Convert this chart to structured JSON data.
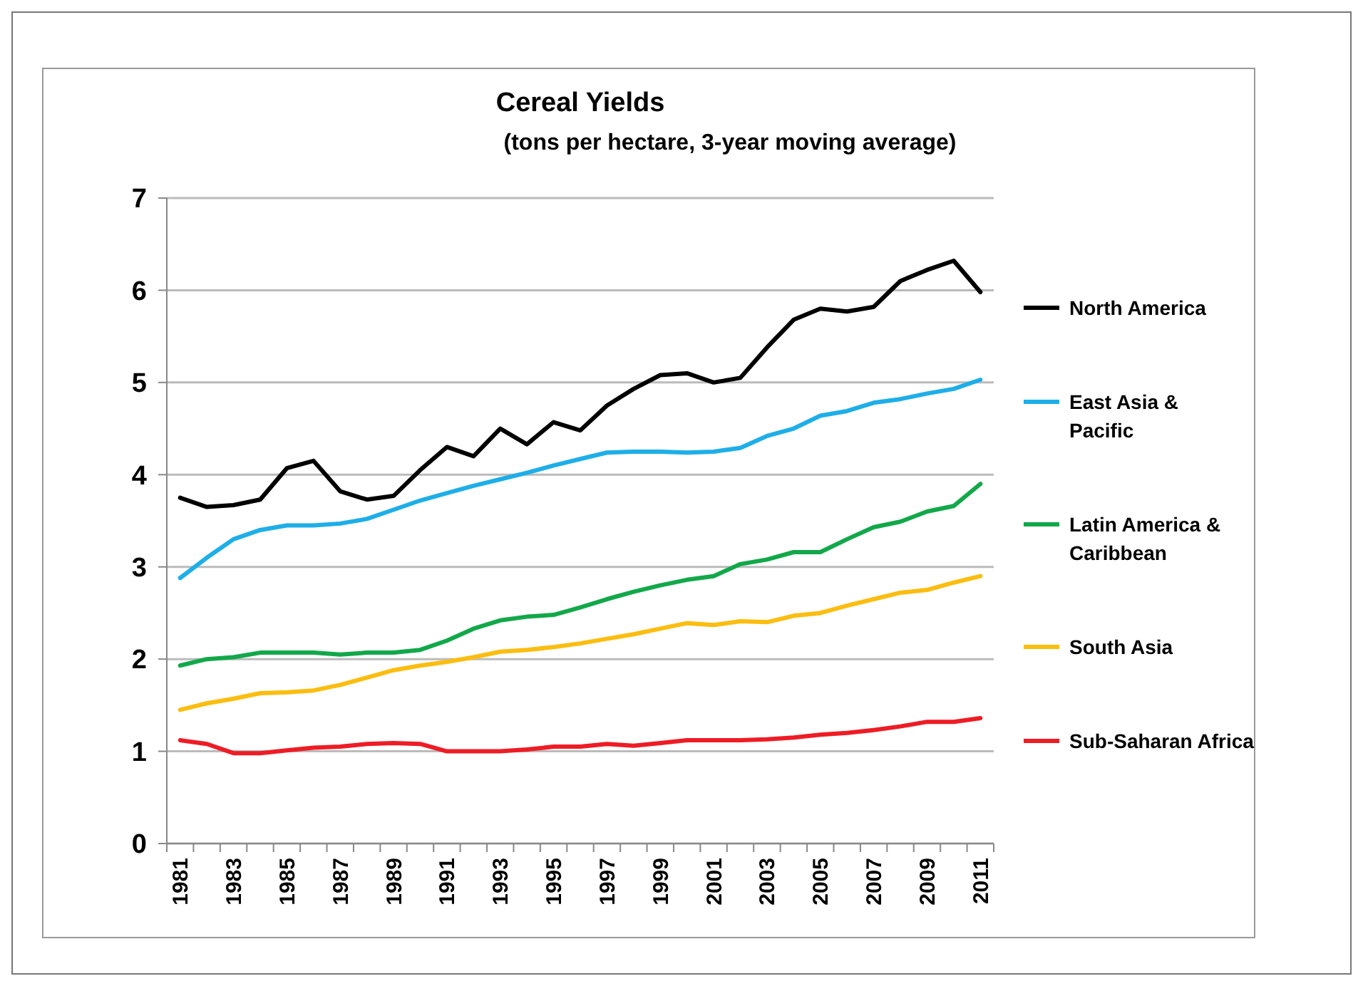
{
  "chart_data": {
    "type": "line",
    "title": "Cereal Yields",
    "subtitle": "(tons per hectare, 3-year moving average)",
    "categories": [
      "1981",
      null,
      "1983",
      null,
      "1985",
      null,
      "1987",
      null,
      "1989",
      null,
      "1991",
      null,
      "1993",
      null,
      "1995",
      null,
      "1997",
      null,
      "1999",
      null,
      "2001",
      null,
      "2003",
      null,
      "2005",
      null,
      "2007",
      null,
      "2009",
      null,
      "2011"
    ],
    "series": [
      {
        "name": "North America",
        "color": "#000000",
        "values": [
          3.75,
          3.65,
          3.67,
          3.73,
          4.07,
          4.15,
          3.82,
          3.73,
          3.77,
          4.05,
          4.3,
          4.2,
          4.5,
          4.33,
          4.57,
          4.48,
          4.75,
          4.93,
          5.08,
          5.1,
          5.0,
          5.05,
          5.38,
          5.68,
          5.8,
          5.77,
          5.82,
          6.1,
          6.22,
          6.32,
          5.98
        ]
      },
      {
        "name": "East Asia & Pacific",
        "color": "#1eaee8",
        "values": [
          2.88,
          3.1,
          3.3,
          3.4,
          3.45,
          3.45,
          3.47,
          3.52,
          3.62,
          3.72,
          3.8,
          3.88,
          3.95,
          4.02,
          4.1,
          4.17,
          4.24,
          4.25,
          4.25,
          4.24,
          4.25,
          4.29,
          4.42,
          4.5,
          4.64,
          4.69,
          4.78,
          4.82,
          4.88,
          4.93,
          5.03
        ]
      },
      {
        "name": "Latin America & Caribbean",
        "color": "#12a84a",
        "values": [
          1.93,
          2.0,
          2.02,
          2.07,
          2.07,
          2.07,
          2.05,
          2.07,
          2.07,
          2.1,
          2.2,
          2.33,
          2.42,
          2.46,
          2.48,
          2.56,
          2.65,
          2.73,
          2.8,
          2.86,
          2.9,
          3.03,
          3.08,
          3.16,
          3.16,
          3.3,
          3.43,
          3.49,
          3.6,
          3.66,
          3.9
        ]
      },
      {
        "name": "South Asia",
        "color": "#fbbd0f",
        "values": [
          1.45,
          1.52,
          1.57,
          1.63,
          1.64,
          1.66,
          1.72,
          1.8,
          1.88,
          1.93,
          1.97,
          2.02,
          2.08,
          2.1,
          2.13,
          2.17,
          2.22,
          2.27,
          2.33,
          2.39,
          2.37,
          2.41,
          2.4,
          2.47,
          2.5,
          2.58,
          2.65,
          2.72,
          2.75,
          2.83,
          2.9
        ]
      },
      {
        "name": "Sub-Saharan Africa",
        "color": "#ee1c25",
        "values": [
          1.12,
          1.08,
          0.98,
          0.98,
          1.01,
          1.04,
          1.05,
          1.08,
          1.09,
          1.08,
          1.0,
          1.0,
          1.0,
          1.02,
          1.05,
          1.05,
          1.08,
          1.06,
          1.09,
          1.12,
          1.12,
          1.12,
          1.13,
          1.15,
          1.18,
          1.2,
          1.23,
          1.27,
          1.32,
          1.32,
          1.36
        ]
      }
    ],
    "ylim": [
      0,
      7
    ],
    "yticks": [
      0,
      1,
      2,
      3,
      4,
      5,
      6,
      7
    ],
    "grid": "y",
    "legend": "right",
    "marker": "none",
    "line_style": "solid"
  }
}
